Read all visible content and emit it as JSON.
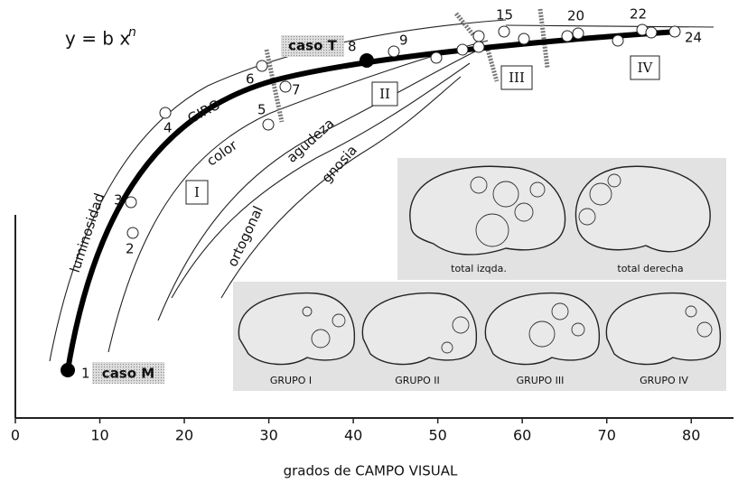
{
  "chart_data": {
    "type": "line",
    "title": "y = b x",
    "title_exponent": "n",
    "x_label": "grados de CAMPO VISUAL",
    "xlim": [
      0,
      85
    ],
    "xticks": [
      0,
      10,
      20,
      30,
      40,
      50,
      60,
      70,
      80
    ],
    "curve_labels": [
      "luminosidad",
      "GIRO",
      "color",
      "agudeza",
      "ortogonal",
      "gnosia"
    ],
    "zones": [
      "I",
      "II",
      "III",
      "IV"
    ],
    "cases": [
      "caso M",
      "caso T"
    ],
    "point_labels": [
      "1",
      "2",
      "3",
      "4",
      "5",
      "6",
      "7",
      "8",
      "9",
      "15",
      "20",
      "22",
      "24"
    ],
    "inset_labels": [
      "total izqda.",
      "total derecha",
      "GRUPO I",
      "GRUPO II",
      "GRUPO III",
      "GRUPO IV"
    ]
  }
}
